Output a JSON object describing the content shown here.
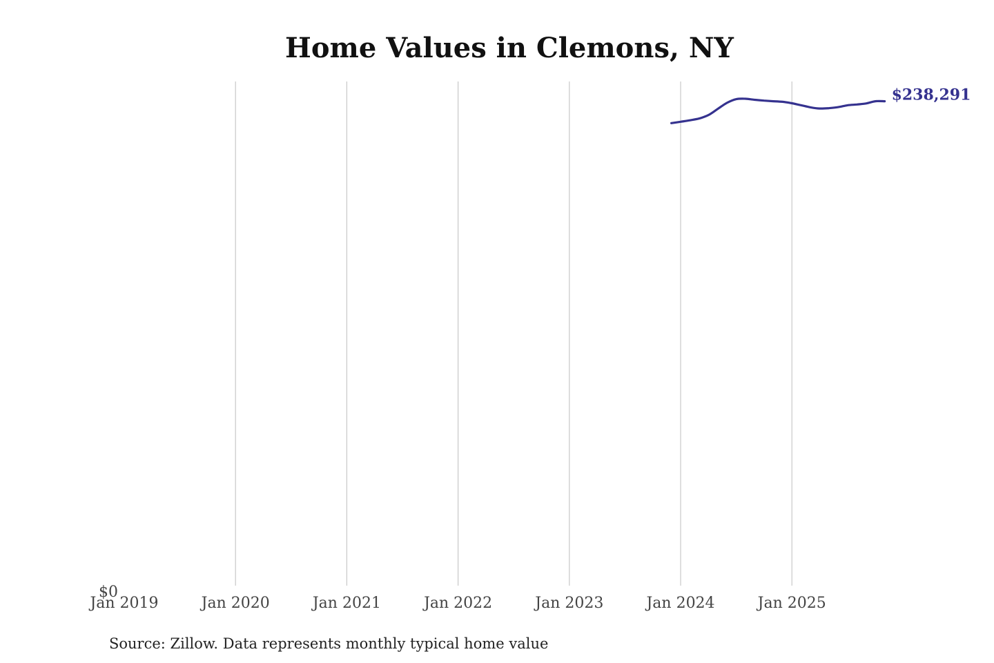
{
  "chart_data": {
    "type": "line",
    "title": "Home Values in Clemons, NY",
    "source": "Source: Zillow. Data represents monthly typical home value",
    "x_ticks": [
      "Jan 2019",
      "Jan 2020",
      "Jan 2021",
      "Jan 2022",
      "Jan 2023",
      "Jan 2024",
      "Jan 2025"
    ],
    "y_ticks": [
      "$0"
    ],
    "xlim": [
      "2019-01",
      "2025-12"
    ],
    "ylim": [
      0,
      248000
    ],
    "grid": "vertical",
    "line_color": "#35328f",
    "end_label": "$238,291",
    "series": [
      {
        "x": [
          "2023-12",
          "2024-01",
          "2024-02",
          "2024-03",
          "2024-04",
          "2024-05",
          "2024-06",
          "2024-07",
          "2024-08",
          "2024-09",
          "2024-10",
          "2024-11",
          "2024-12",
          "2025-01",
          "2025-02",
          "2025-03",
          "2025-04",
          "2025-05",
          "2025-06",
          "2025-07",
          "2025-08",
          "2025-09",
          "2025-10",
          "2025-11"
        ],
        "values": [
          227500,
          228200,
          228900,
          229800,
          231500,
          234500,
          237500,
          239300,
          239500,
          239000,
          238600,
          238300,
          238000,
          237300,
          236300,
          235300,
          234700,
          234900,
          235400,
          236300,
          236700,
          237200,
          238291,
          238291
        ]
      }
    ]
  }
}
